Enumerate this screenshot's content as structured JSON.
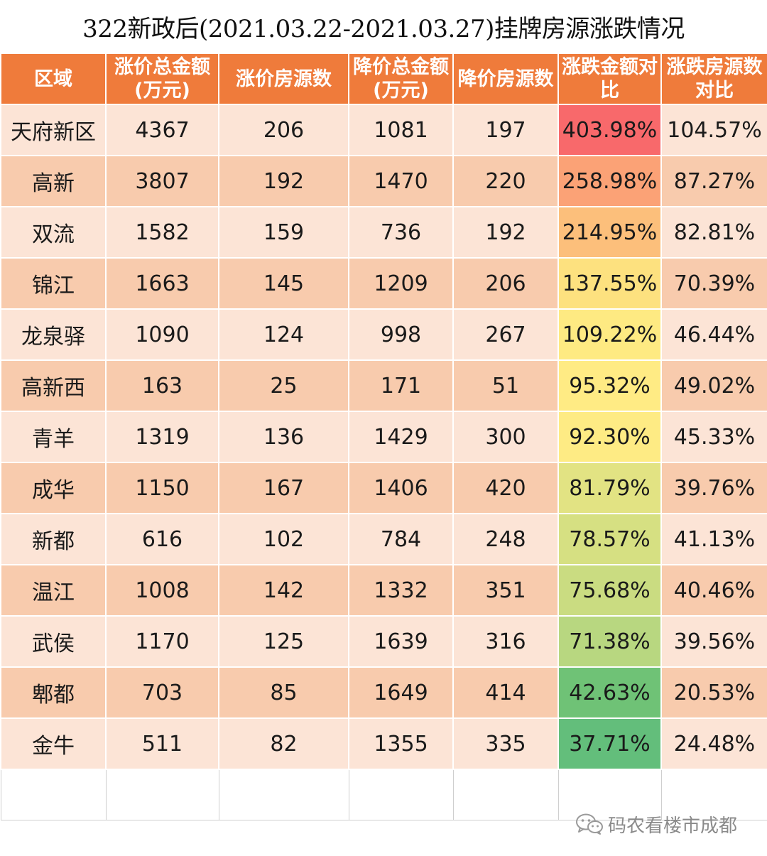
{
  "title": "322新政后(2021.03.22-2021.03.27)挂牌房源涨跌情况",
  "table": {
    "headers": [
      "区域",
      "涨价总金额(万元)",
      "涨价房源数",
      "降价总金额(万元)",
      "降价房源数",
      "涨跌金额对比",
      "涨跌房源数对比"
    ],
    "rows": [
      {
        "region": "天府新区",
        "up_amount": "4367",
        "up_count": "206",
        "down_amount": "1081",
        "down_count": "197",
        "amount_ratio": "403.98%",
        "count_ratio": "104.57%",
        "ratio_color": "#f8696b"
      },
      {
        "region": "高新",
        "up_amount": "3807",
        "up_count": "192",
        "down_amount": "1470",
        "down_count": "220",
        "amount_ratio": "258.98%",
        "count_ratio": "87.27%",
        "ratio_color": "#fba276"
      },
      {
        "region": "双流",
        "up_amount": "1582",
        "up_count": "159",
        "down_amount": "736",
        "down_count": "192",
        "amount_ratio": "214.95%",
        "count_ratio": "82.81%",
        "ratio_color": "#fcbf7b"
      },
      {
        "region": "锦江",
        "up_amount": "1663",
        "up_count": "145",
        "down_amount": "1209",
        "down_count": "206",
        "amount_ratio": "137.55%",
        "count_ratio": "70.39%",
        "ratio_color": "#fde17f"
      },
      {
        "region": "龙泉驿",
        "up_amount": "1090",
        "up_count": "124",
        "down_amount": "998",
        "down_count": "267",
        "amount_ratio": "109.22%",
        "count_ratio": "46.44%",
        "ratio_color": "#feea82"
      },
      {
        "region": "高新西",
        "up_amount": "163",
        "up_count": "25",
        "down_amount": "171",
        "down_count": "51",
        "amount_ratio": "95.32%",
        "count_ratio": "49.02%",
        "ratio_color": "#ffeb84"
      },
      {
        "region": "青羊",
        "up_amount": "1319",
        "up_count": "136",
        "down_amount": "1429",
        "down_count": "300",
        "amount_ratio": "92.30%",
        "count_ratio": "45.33%",
        "ratio_color": "#feeb84"
      },
      {
        "region": "成华",
        "up_amount": "1150",
        "up_count": "167",
        "down_amount": "1406",
        "down_count": "420",
        "amount_ratio": "81.79%",
        "count_ratio": "39.76%",
        "ratio_color": "#e2e383"
      },
      {
        "region": "新都",
        "up_amount": "616",
        "up_count": "102",
        "down_amount": "784",
        "down_count": "248",
        "amount_ratio": "78.57%",
        "count_ratio": "41.13%",
        "ratio_color": "#d6e082"
      },
      {
        "region": "温江",
        "up_amount": "1008",
        "up_count": "142",
        "down_amount": "1332",
        "down_count": "351",
        "amount_ratio": "75.68%",
        "count_ratio": "40.46%",
        "ratio_color": "#cadc81"
      },
      {
        "region": "武侯",
        "up_amount": "1170",
        "up_count": "125",
        "down_amount": "1639",
        "down_count": "316",
        "amount_ratio": "71.38%",
        "count_ratio": "39.56%",
        "ratio_color": "#b8d780"
      },
      {
        "region": "郫都",
        "up_amount": "703",
        "up_count": "85",
        "down_amount": "1649",
        "down_count": "414",
        "amount_ratio": "42.63%",
        "count_ratio": "20.53%",
        "ratio_color": "#6fc276"
      },
      {
        "region": "金牛",
        "up_amount": "511",
        "up_count": "82",
        "down_amount": "1355",
        "down_count": "335",
        "amount_ratio": "37.71%",
        "count_ratio": "24.48%",
        "ratio_color": "#63be7b"
      }
    ]
  },
  "watermark": {
    "text": "码农看楼市成都",
    "icon": "wechat-icon"
  }
}
